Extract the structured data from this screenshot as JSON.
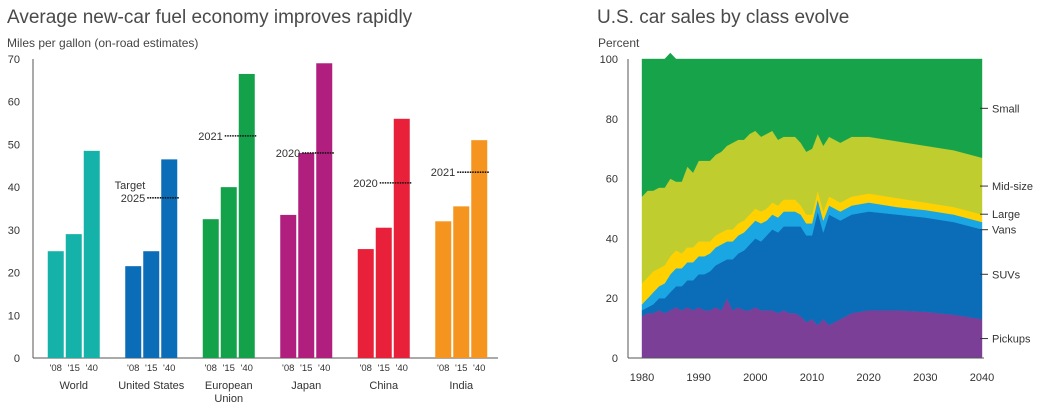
{
  "chart_data": [
    {
      "type": "bar",
      "title": "Average new-car fuel economy improves rapidly",
      "ylabel": "Miles per gallon (on-road estimates)",
      "ylim": [
        0,
        70
      ],
      "yticks": [
        0,
        10,
        20,
        30,
        40,
        50,
        60,
        70
      ],
      "year_labels": [
        "'08",
        "'15",
        "'40"
      ],
      "groups": [
        {
          "name": "World",
          "values": [
            25,
            29,
            48.5
          ],
          "color": "#14b2a8",
          "target": null
        },
        {
          "name": "United States",
          "values": [
            21.5,
            25,
            46.5
          ],
          "color": "#0b6cb8",
          "target": {
            "label_lines": [
              "Target",
              "2025"
            ],
            "value": 37.5
          }
        },
        {
          "name": "European Union",
          "name_lines": [
            "European",
            "Union"
          ],
          "values": [
            32.5,
            40,
            66.5
          ],
          "color": "#13a14a",
          "target": {
            "label_lines": [
              "2021"
            ],
            "value": 52
          }
        },
        {
          "name": "Japan",
          "values": [
            33.5,
            48,
            69
          ],
          "color": "#b01f7d",
          "target": {
            "label_lines": [
              "2020"
            ],
            "value": 48
          }
        },
        {
          "name": "China",
          "values": [
            25.5,
            30.5,
            56
          ],
          "color": "#e8203a",
          "target": {
            "label_lines": [
              "2020"
            ],
            "value": 41
          }
        },
        {
          "name": "India",
          "values": [
            32,
            35.5,
            51
          ],
          "color": "#f5951f",
          "target": {
            "label_lines": [
              "2021"
            ],
            "value": 43.5
          }
        }
      ]
    },
    {
      "type": "area",
      "stacked": true,
      "title": "U.S. car sales by class evolve",
      "ylabel": "Percent",
      "ylim": [
        0,
        100
      ],
      "yticks": [
        0,
        20,
        40,
        60,
        80,
        100
      ],
      "xlim": [
        1980,
        2040
      ],
      "xticks": [
        1980,
        1990,
        2000,
        2010,
        2020,
        2030,
        2040
      ],
      "x": [
        1980,
        1981,
        1982,
        1983,
        1984,
        1985,
        1986,
        1987,
        1988,
        1989,
        1990,
        1991,
        1992,
        1993,
        1994,
        1995,
        1996,
        1997,
        1998,
        1999,
        2000,
        2001,
        2002,
        2003,
        2004,
        2005,
        2006,
        2007,
        2008,
        2009,
        2010,
        2011,
        2012,
        2013,
        2014,
        2015,
        2016,
        2017,
        2020,
        2025,
        2030,
        2035,
        2040
      ],
      "series": [
        {
          "name": "Pickups",
          "color": "#7b3f98",
          "values": [
            14,
            15,
            15,
            16,
            15,
            16,
            17,
            16,
            17,
            16,
            17,
            16,
            16,
            17,
            16,
            20,
            16,
            17,
            16,
            16,
            17,
            16,
            16,
            16,
            15,
            16,
            15,
            15,
            14,
            12,
            13,
            11,
            13,
            11,
            12,
            13,
            14,
            15,
            16,
            16,
            15.5,
            14.5,
            13
          ]
        },
        {
          "name": "SUVs",
          "color": "#0b6cb8",
          "values": [
            2,
            2,
            3,
            4,
            5,
            6,
            7,
            8,
            9,
            10,
            11,
            12,
            13,
            14,
            16,
            13,
            17,
            18,
            20,
            22,
            23,
            23,
            25,
            27,
            27,
            28,
            29,
            29,
            30,
            29,
            28,
            38,
            29,
            37,
            35,
            33,
            33,
            33,
            33,
            32,
            31.5,
            31,
            30
          ]
        },
        {
          "name": "Vans",
          "color": "#19a6e3",
          "values": [
            2,
            3,
            4,
            4,
            5,
            6,
            6,
            6,
            6,
            6,
            6,
            6,
            6,
            6,
            6,
            6,
            6,
            6,
            6,
            6,
            6,
            6,
            5,
            5,
            5,
            5,
            5,
            5,
            4,
            4,
            4,
            4,
            4,
            3,
            3,
            3,
            3,
            3,
            3,
            2.5,
            2.5,
            2.5,
            2.5
          ]
        },
        {
          "name": "Large",
          "color": "#ffd100",
          "values": [
            7,
            7,
            7,
            6,
            6,
            6,
            6,
            5,
            5,
            5,
            5,
            5,
            4,
            4,
            4,
            4,
            4,
            4,
            4,
            4,
            4,
            4,
            4,
            4,
            4,
            4,
            4,
            4,
            3,
            3,
            3,
            3,
            3,
            3,
            3,
            3,
            3,
            3,
            3,
            3,
            2.5,
            2.5,
            2.5
          ]
        },
        {
          "name": "Mid-size",
          "color": "#bfcd2e",
          "values": [
            29,
            29,
            27,
            27,
            26,
            26,
            23,
            24,
            27,
            25,
            27,
            27,
            27,
            27,
            27,
            28,
            29,
            28,
            27,
            27,
            26,
            25,
            25,
            24,
            22,
            21,
            21,
            21,
            21,
            21,
            22,
            19,
            22,
            20,
            20,
            20,
            20,
            20,
            19,
            19,
            19,
            19,
            19
          ]
        },
        {
          "name": "Small",
          "color": "#17a34a",
          "values": [
            46,
            44,
            44,
            43,
            43,
            42,
            41,
            41,
            36,
            38,
            34,
            34,
            34,
            32,
            31,
            29,
            28,
            27,
            27,
            25,
            24,
            26,
            25,
            24,
            27,
            26,
            26,
            26,
            28,
            31,
            30,
            25,
            29,
            26,
            27,
            28,
            27,
            26,
            26,
            27.5,
            29,
            30.5,
            33
          ]
        }
      ]
    }
  ]
}
